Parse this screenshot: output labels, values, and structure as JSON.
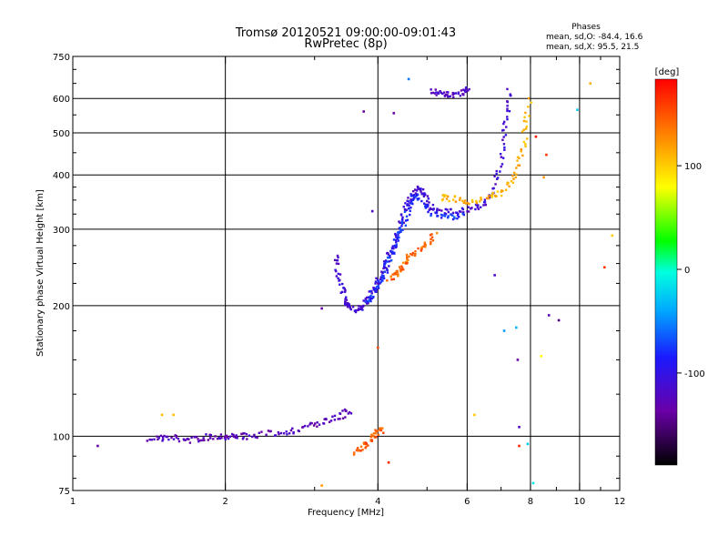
{
  "chart_data": {
    "type": "scatter",
    "title": "Tromsø 20120521 09:00:00-09:01:43",
    "subtitle": "RwPretec (8p)",
    "xlabel": "Frequency [MHz]",
    "ylabel": "Stationary phase Virtual Height [km]",
    "x_scale": "log",
    "y_scale": "log",
    "xlim": [
      1,
      12
    ],
    "ylim": [
      75,
      750
    ],
    "x_ticks": [
      1,
      2,
      4,
      6,
      8,
      10,
      12
    ],
    "x_major_grid": [
      2,
      4,
      6,
      8,
      10
    ],
    "y_ticks": [
      75,
      100,
      200,
      300,
      400,
      500,
      600,
      750
    ],
    "y_major_grid": [
      100,
      200,
      300,
      400,
      500,
      600
    ],
    "grid": true,
    "phases_info": {
      "heading": "Phases",
      "line_o": "mean, sd,O: -84.4, 16.6",
      "line_x": "mean, sd,X:  95.5, 21.5"
    },
    "colorbar": {
      "label": "[deg]",
      "range": [
        -180,
        180
      ],
      "ticks": [
        100,
        0,
        -100
      ]
    },
    "traces": [
      {
        "phase": -120,
        "points": [
          [
            1.42,
            99
          ],
          [
            1.5,
            99
          ],
          [
            1.6,
            99
          ],
          [
            1.7,
            98
          ],
          [
            1.8,
            99
          ],
          [
            1.9,
            100
          ],
          [
            2.0,
            100
          ],
          [
            2.1,
            100
          ],
          [
            2.2,
            100
          ],
          [
            2.4,
            101
          ],
          [
            2.6,
            102
          ],
          [
            2.8,
            104
          ],
          [
            3.0,
            106
          ],
          [
            3.2,
            109
          ],
          [
            3.4,
            112
          ],
          [
            3.55,
            115
          ]
        ]
      },
      {
        "phase": -105,
        "points": [
          [
            3.3,
            260
          ],
          [
            3.35,
            240
          ],
          [
            3.4,
            220
          ],
          [
            3.45,
            205
          ],
          [
            3.5,
            198
          ],
          [
            3.6,
            196
          ],
          [
            3.7,
            198
          ],
          [
            3.8,
            205
          ],
          [
            3.9,
            215
          ],
          [
            4.0,
            228
          ],
          [
            4.1,
            242
          ],
          [
            4.2,
            258
          ],
          [
            4.3,
            276
          ],
          [
            4.4,
            298
          ],
          [
            4.5,
            322
          ],
          [
            4.6,
            345
          ],
          [
            4.7,
            362
          ],
          [
            4.8,
            372
          ],
          [
            4.9,
            365
          ],
          [
            5.0,
            345
          ],
          [
            5.2,
            330
          ],
          [
            5.5,
            328
          ],
          [
            5.8,
            330
          ],
          [
            6.2,
            335
          ],
          [
            6.5,
            345
          ],
          [
            6.8,
            375
          ],
          [
            7.0,
            425
          ],
          [
            7.1,
            495
          ],
          [
            7.2,
            560
          ],
          [
            7.25,
            640
          ]
        ]
      },
      {
        "phase": -75,
        "points": [
          [
            3.8,
            205
          ],
          [
            3.9,
            212
          ],
          [
            4.0,
            222
          ],
          [
            4.1,
            236
          ],
          [
            4.2,
            252
          ],
          [
            4.3,
            270
          ],
          [
            4.4,
            290
          ],
          [
            4.5,
            312
          ],
          [
            4.6,
            335
          ],
          [
            4.7,
            352
          ],
          [
            4.8,
            356
          ],
          [
            5.0,
            335
          ],
          [
            5.3,
            318
          ],
          [
            5.6,
            320
          ],
          [
            6.0,
            325
          ]
        ]
      },
      {
        "phase": -115,
        "points": [
          [
            5.1,
            625
          ],
          [
            5.3,
            618
          ],
          [
            5.5,
            612
          ],
          [
            5.7,
            615
          ],
          [
            5.9,
            622
          ],
          [
            6.1,
            628
          ]
        ]
      },
      {
        "phase": 140,
        "points": [
          [
            4.2,
            230
          ],
          [
            4.3,
            235
          ],
          [
            4.4,
            240
          ],
          [
            4.5,
            248
          ],
          [
            4.6,
            258
          ],
          [
            4.8,
            268
          ],
          [
            5.0,
            280
          ],
          [
            5.2,
            292
          ]
        ]
      },
      {
        "phase": 145,
        "points": [
          [
            3.6,
            92
          ],
          [
            3.7,
            94
          ],
          [
            3.8,
            96
          ],
          [
            3.9,
            99
          ],
          [
            4.0,
            102
          ],
          [
            4.1,
            104
          ]
        ]
      },
      {
        "phase": 110,
        "points": [
          [
            5.3,
            355
          ],
          [
            5.6,
            352
          ],
          [
            6.0,
            348
          ],
          [
            6.4,
            350
          ],
          [
            6.8,
            358
          ],
          [
            7.2,
            372
          ],
          [
            7.5,
            400
          ],
          [
            7.7,
            450
          ],
          [
            7.85,
            520
          ],
          [
            7.95,
            600
          ]
        ]
      }
    ],
    "scatter_points": [
      {
        "x": 1.12,
        "y": 95,
        "phase": -125
      },
      {
        "x": 1.5,
        "y": 112,
        "phase": 105
      },
      {
        "x": 1.58,
        "y": 112,
        "phase": 105
      },
      {
        "x": 3.75,
        "y": 560,
        "phase": -130
      },
      {
        "x": 4.3,
        "y": 555,
        "phase": -130
      },
      {
        "x": 4.6,
        "y": 665,
        "phase": -50
      },
      {
        "x": 3.1,
        "y": 197,
        "phase": -130
      },
      {
        "x": 3.9,
        "y": 330,
        "phase": -110
      },
      {
        "x": 4.0,
        "y": 160,
        "phase": 150
      },
      {
        "x": 4.2,
        "y": 87,
        "phase": 165
      },
      {
        "x": 6.2,
        "y": 112,
        "phase": 100
      },
      {
        "x": 6.8,
        "y": 235,
        "phase": -110
      },
      {
        "x": 7.1,
        "y": 175,
        "phase": -40
      },
      {
        "x": 7.5,
        "y": 178,
        "phase": -30
      },
      {
        "x": 7.55,
        "y": 150,
        "phase": -125
      },
      {
        "x": 7.6,
        "y": 105,
        "phase": -110
      },
      {
        "x": 7.6,
        "y": 95,
        "phase": 165
      },
      {
        "x": 7.9,
        "y": 96,
        "phase": -20
      },
      {
        "x": 8.1,
        "y": 78,
        "phase": -10
      },
      {
        "x": 8.4,
        "y": 153,
        "phase": 80
      },
      {
        "x": 8.5,
        "y": 395,
        "phase": 120
      },
      {
        "x": 8.6,
        "y": 445,
        "phase": 160
      },
      {
        "x": 8.2,
        "y": 490,
        "phase": 170
      },
      {
        "x": 9.1,
        "y": 185,
        "phase": -140
      },
      {
        "x": 9.9,
        "y": 565,
        "phase": -20
      },
      {
        "x": 10.5,
        "y": 650,
        "phase": 110
      },
      {
        "x": 11.2,
        "y": 245,
        "phase": 160
      },
      {
        "x": 11.6,
        "y": 290,
        "phase": 100
      },
      {
        "x": 8.7,
        "y": 190,
        "phase": -120
      },
      {
        "x": 3.1,
        "y": 77,
        "phase": 120
      }
    ]
  }
}
